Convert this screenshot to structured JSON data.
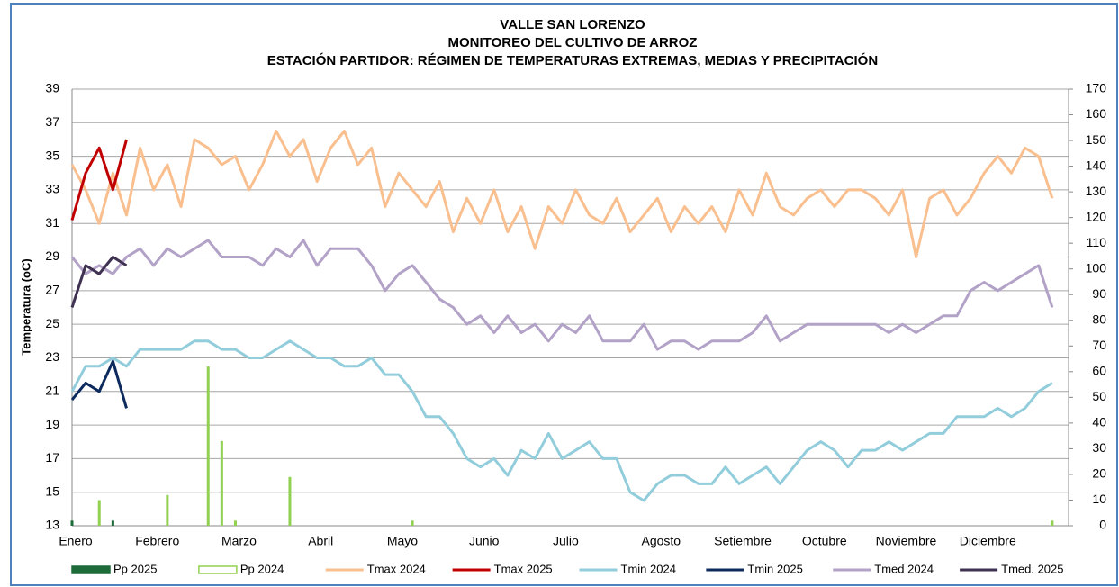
{
  "chart_data": {
    "type": "line",
    "title_lines": [
      "VALLE SAN LORENZO",
      "MONITOREO DEL CULTIVO DE ARROZ",
      "ESTACIÓN PARTIDOR: RÉGIMEN DE TEMPERATURAS EXTREMAS, MEDIAS Y PRECIPITACIÓN"
    ],
    "y_label": "Temperatura (oC)",
    "categories": [
      "Enero",
      null,
      null,
      null,
      null,
      null,
      "Febrero",
      null,
      null,
      null,
      null,
      null,
      "Marzo",
      null,
      null,
      null,
      null,
      null,
      "Abril",
      null,
      null,
      null,
      null,
      null,
      "Mayo",
      null,
      null,
      null,
      null,
      null,
      "Junio",
      null,
      null,
      null,
      null,
      null,
      "Julio",
      null,
      null,
      null,
      null,
      null,
      null,
      "Agosto",
      null,
      null,
      null,
      null,
      null,
      "Setiembre",
      null,
      null,
      null,
      null,
      null,
      "Octubre",
      null,
      null,
      null,
      null,
      null,
      "Noviembre",
      null,
      null,
      null,
      null,
      null,
      "Diciembre",
      null,
      null,
      null,
      null,
      null
    ],
    "ylim": [
      13,
      39
    ],
    "yticks": [
      13,
      15,
      17,
      19,
      21,
      23,
      25,
      27,
      29,
      31,
      33,
      35,
      37,
      39
    ],
    "y2lim": [
      0,
      170
    ],
    "y2ticks": [
      0,
      10,
      20,
      30,
      40,
      50,
      60,
      70,
      80,
      90,
      100,
      110,
      120,
      130,
      140,
      150,
      160,
      170
    ],
    "grid": true,
    "series": [
      {
        "name": "Pp 2025",
        "type": "bar",
        "axis": "y2",
        "color": "#1e6b3a",
        "values": [
          2,
          0,
          0,
          2,
          0,
          null,
          null,
          null,
          null,
          null,
          null,
          null,
          null,
          null,
          null,
          null,
          null,
          null,
          null,
          null,
          null,
          null,
          null,
          null,
          null,
          null,
          null,
          null,
          null,
          null,
          null,
          null,
          null,
          null,
          null,
          null,
          null,
          null,
          null,
          null,
          null,
          null,
          null,
          null,
          null,
          null,
          null,
          null,
          null,
          null,
          null,
          null,
          null,
          null,
          null,
          null,
          null,
          null,
          null,
          null,
          null,
          null,
          null,
          null,
          null,
          null,
          null,
          null,
          null,
          null,
          null,
          null,
          null
        ]
      },
      {
        "name": "Pp 2024",
        "type": "bar",
        "axis": "y2",
        "color": "#92d050",
        "values": [
          0,
          0,
          10,
          0,
          0,
          0,
          0,
          12,
          0,
          0,
          62,
          33,
          2,
          0,
          0,
          0,
          19,
          0,
          0,
          0,
          0,
          0,
          0,
          0,
          0,
          2,
          0,
          0,
          0,
          0,
          0,
          0,
          0,
          0,
          0,
          0,
          0,
          0,
          0,
          0,
          0,
          0,
          0,
          0,
          0,
          0,
          0,
          0,
          0,
          0,
          0,
          0,
          0,
          0,
          0,
          0,
          0,
          0,
          0,
          0,
          0,
          0,
          0,
          0,
          0,
          0,
          0,
          0,
          0,
          0,
          0,
          0,
          2
        ]
      },
      {
        "name": "Tmax 2024",
        "type": "line",
        "color": "#f9bf8f",
        "values": [
          34.5,
          33,
          31,
          34,
          31.5,
          35.5,
          33,
          34.5,
          32,
          36,
          35.5,
          34.5,
          35,
          33,
          34.5,
          36.5,
          35,
          36,
          33.5,
          35.5,
          36.5,
          34.5,
          35.5,
          32,
          34,
          33,
          32,
          33.5,
          30.5,
          32.5,
          31,
          33,
          30.5,
          32,
          29.5,
          32,
          31,
          33,
          31.5,
          31,
          32.5,
          30.5,
          31.5,
          32.5,
          30.5,
          32,
          31,
          32,
          30.5,
          33,
          31.5,
          34,
          32,
          31.5,
          32.5,
          33,
          32,
          33,
          33,
          32.5,
          31.5,
          33,
          29,
          32.5,
          33,
          31.5,
          32.5,
          34,
          35,
          34,
          35.5,
          35,
          32.5
        ]
      },
      {
        "name": "Tmax 2025",
        "type": "line",
        "color": "#c00000",
        "values": [
          31.2,
          34,
          35.5,
          33,
          36,
          null,
          null,
          null,
          null,
          null,
          null,
          null,
          null,
          null,
          null,
          null,
          null,
          null,
          null,
          null,
          null,
          null,
          null,
          null,
          null,
          null,
          null,
          null,
          null,
          null,
          null,
          null,
          null,
          null,
          null,
          null,
          null,
          null,
          null,
          null,
          null,
          null,
          null,
          null,
          null,
          null,
          null,
          null,
          null,
          null,
          null,
          null,
          null,
          null,
          null,
          null,
          null,
          null,
          null,
          null,
          null,
          null,
          null,
          null,
          null,
          null,
          null,
          null,
          null,
          null,
          null,
          null,
          null
        ]
      },
      {
        "name": "Tmin 2024",
        "type": "line",
        "color": "#92cddc",
        "values": [
          21,
          22.5,
          22.5,
          23,
          22.5,
          23.5,
          23.5,
          23.5,
          23.5,
          24,
          24,
          23.5,
          23.5,
          23,
          23,
          23.5,
          24,
          23.5,
          23,
          23,
          22.5,
          22.5,
          23,
          22,
          22,
          21,
          19.5,
          19.5,
          18.5,
          17,
          16.5,
          17,
          16,
          17.5,
          17,
          18.5,
          17,
          17.5,
          18,
          17,
          17,
          15,
          14.5,
          15.5,
          16,
          16,
          15.5,
          15.5,
          16.5,
          15.5,
          16,
          16.5,
          15.5,
          16.5,
          17.5,
          18,
          17.5,
          16.5,
          17.5,
          17.5,
          18,
          17.5,
          18,
          18.5,
          18.5,
          19.5,
          19.5,
          19.5,
          20,
          19.5,
          20,
          21,
          21.5
        ]
      },
      {
        "name": "Tmin 2025",
        "type": "line",
        "color": "#0d2a5e",
        "values": [
          20.5,
          21.5,
          21,
          22.8,
          20,
          null,
          null,
          null,
          null,
          null,
          null,
          null,
          null,
          null,
          null,
          null,
          null,
          null,
          null,
          null,
          null,
          null,
          null,
          null,
          null,
          null,
          null,
          null,
          null,
          null,
          null,
          null,
          null,
          null,
          null,
          null,
          null,
          null,
          null,
          null,
          null,
          null,
          null,
          null,
          null,
          null,
          null,
          null,
          null,
          null,
          null,
          null,
          null,
          null,
          null,
          null,
          null,
          null,
          null,
          null,
          null,
          null,
          null,
          null,
          null,
          null,
          null,
          null,
          null,
          null,
          null,
          null,
          null
        ]
      },
      {
        "name": "Tmed 2024",
        "type": "line",
        "color": "#b3a2c7",
        "values": [
          29,
          28,
          28.5,
          28,
          29,
          29.5,
          28.5,
          29.5,
          29,
          29.5,
          30,
          29,
          29,
          29,
          28.5,
          29.5,
          29,
          30,
          28.5,
          29.5,
          29.5,
          29.5,
          28.5,
          27,
          28,
          28.5,
          27.5,
          26.5,
          26,
          25,
          25.5,
          24.5,
          25.5,
          24.5,
          25,
          24,
          25,
          24.5,
          25.5,
          24,
          24,
          24,
          25,
          23.5,
          24,
          24,
          23.5,
          24,
          24,
          24,
          24.5,
          25.5,
          24,
          24.5,
          25,
          25,
          25,
          25,
          25,
          25,
          24.5,
          25,
          24.5,
          25,
          25.5,
          25.5,
          27,
          27.5,
          27,
          27.5,
          28,
          28.5,
          26
        ]
      },
      {
        "name": "Tmed. 2025",
        "type": "line",
        "color": "#3f3151",
        "values": [
          26,
          28.5,
          28,
          29,
          28.5,
          null,
          null,
          null,
          null,
          null,
          null,
          null,
          null,
          null,
          null,
          null,
          null,
          null,
          null,
          null,
          null,
          null,
          null,
          null,
          null,
          null,
          null,
          null,
          null,
          null,
          null,
          null,
          null,
          null,
          null,
          null,
          null,
          null,
          null,
          null,
          null,
          null,
          null,
          null,
          null,
          null,
          null,
          null,
          null,
          null,
          null,
          null,
          null,
          null,
          null,
          null,
          null,
          null,
          null,
          null,
          null,
          null,
          null,
          null,
          null,
          null,
          null,
          null,
          null,
          null,
          null,
          null,
          null
        ]
      }
    ]
  }
}
